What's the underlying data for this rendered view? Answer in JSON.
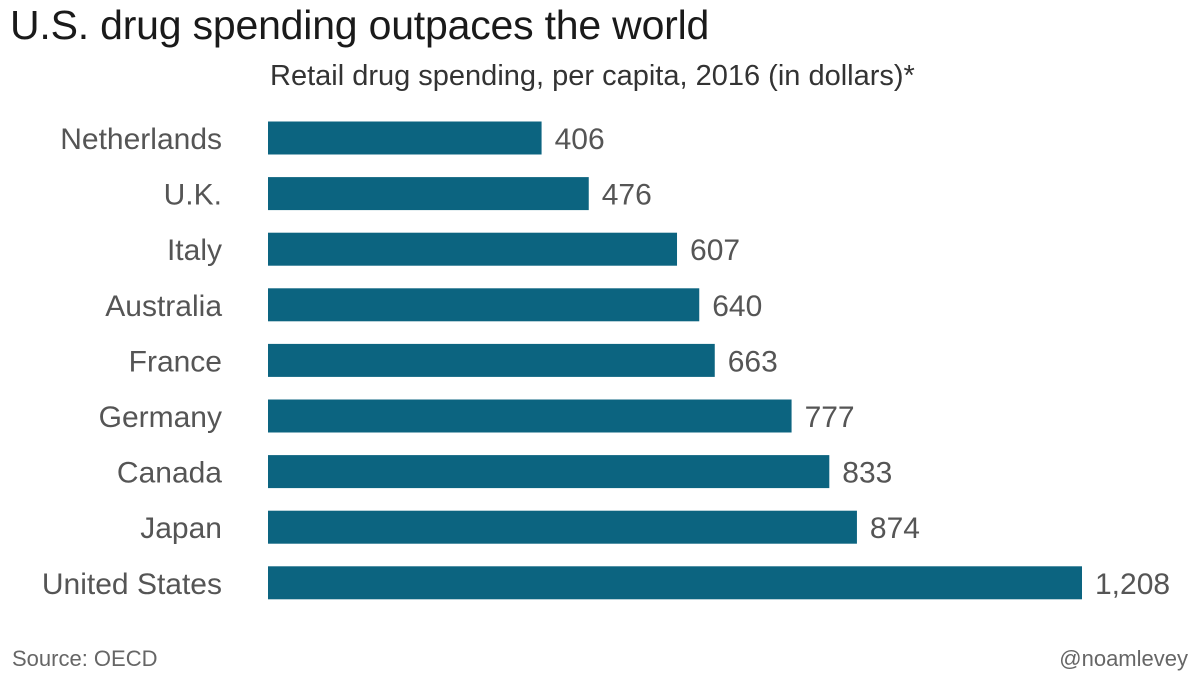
{
  "chart_data": {
    "type": "bar",
    "orientation": "horizontal",
    "title": "U.S. drug spending outpaces the world",
    "subtitle": "Retail drug spending, per capita, 2016 (in dollars)*",
    "categories": [
      "Netherlands",
      "U.K.",
      "Italy",
      "Australia",
      "France",
      "Germany",
      "Canada",
      "Japan",
      "United States"
    ],
    "values": [
      406,
      476,
      607,
      640,
      663,
      777,
      833,
      874,
      1208
    ],
    "value_labels": [
      "406",
      "476",
      "607",
      "640",
      "663",
      "777",
      "833",
      "874",
      "1,208"
    ],
    "xlim": [
      0,
      1208
    ],
    "grid": false,
    "legend": "none",
    "bar_color": "#0c6480"
  },
  "footer": {
    "source": "Source: OECD",
    "credit": "@noamlevey"
  }
}
